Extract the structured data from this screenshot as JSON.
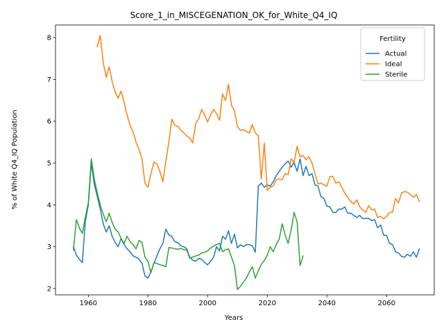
{
  "chart_data": {
    "type": "line",
    "title": "Score_1_in_MISCEGENATION_OK_for_White_Q4_IQ",
    "xlabel": "Years",
    "ylabel": "% of White Q4_IQ Population",
    "xlim": [
      1949,
      2076
    ],
    "ylim": [
      1.85,
      8.3
    ],
    "x_ticks": [
      1960,
      1980,
      2000,
      2020,
      2040,
      2060
    ],
    "y_ticks": [
      2,
      3,
      4,
      5,
      6,
      7,
      8
    ],
    "grid": false,
    "legend": {
      "title": "Fertility",
      "placement": "top-right"
    },
    "series": [
      {
        "name": "Actual",
        "color": "#1f77b4",
        "points": [
          [
            1955,
            3.0
          ],
          [
            1956,
            2.8
          ],
          [
            1957,
            2.7
          ],
          [
            1958,
            2.62
          ],
          [
            1959,
            3.6
          ],
          [
            1960,
            4.0
          ],
          [
            1961,
            5.0
          ],
          [
            1962,
            4.5
          ],
          [
            1963,
            4.2
          ],
          [
            1964,
            3.9
          ],
          [
            1965,
            3.55
          ],
          [
            1966,
            3.35
          ],
          [
            1967,
            3.5
          ],
          [
            1968,
            3.25
          ],
          [
            1969,
            3.1
          ],
          [
            1970,
            3.0
          ],
          [
            1971,
            3.2
          ],
          [
            1972,
            3.05
          ],
          [
            1973,
            2.95
          ],
          [
            1974,
            2.88
          ],
          [
            1975,
            2.78
          ],
          [
            1976,
            2.75
          ],
          [
            1977,
            2.7
          ],
          [
            1978,
            2.6
          ],
          [
            1979,
            2.3
          ],
          [
            1980,
            2.25
          ],
          [
            1981,
            2.4
          ],
          [
            1982,
            2.6
          ],
          [
            1983,
            2.78
          ],
          [
            1984,
            2.95
          ],
          [
            1985,
            3.08
          ],
          [
            1986,
            3.42
          ],
          [
            1987,
            3.28
          ],
          [
            1988,
            3.25
          ],
          [
            1989,
            3.12
          ],
          [
            1990,
            3.1
          ],
          [
            1991,
            3.02
          ],
          [
            1992,
            3.0
          ],
          [
            1993,
            2.95
          ],
          [
            1994,
            2.75
          ],
          [
            1995,
            2.68
          ],
          [
            1996,
            2.65
          ],
          [
            1997,
            2.72
          ],
          [
            1998,
            2.7
          ],
          [
            1999,
            2.62
          ],
          [
            2000,
            2.57
          ],
          [
            2001,
            2.65
          ],
          [
            2002,
            2.75
          ],
          [
            2003,
            3.0
          ],
          [
            2004,
            2.9
          ],
          [
            2005,
            3.25
          ],
          [
            2006,
            3.18
          ],
          [
            2007,
            3.38
          ],
          [
            2008,
            3.08
          ],
          [
            2009,
            3.3
          ],
          [
            2010,
            2.97
          ],
          [
            2011,
            3.05
          ],
          [
            2012,
            3.0
          ],
          [
            2013,
            3.05
          ],
          [
            2014,
            3.05
          ],
          [
            2015,
            3.02
          ],
          [
            2016,
            2.87
          ],
          [
            2017,
            4.45
          ],
          [
            2018,
            4.52
          ],
          [
            2019,
            4.42
          ],
          [
            2020,
            4.48
          ],
          [
            2021,
            4.45
          ],
          [
            2022,
            4.55
          ],
          [
            2023,
            4.7
          ],
          [
            2024,
            4.8
          ],
          [
            2025,
            4.9
          ],
          [
            2026,
            4.98
          ],
          [
            2027,
            5.05
          ],
          [
            2028,
            4.9
          ],
          [
            2029,
            5.02
          ],
          [
            2030,
            4.8
          ],
          [
            2031,
            5.1
          ],
          [
            2032,
            4.7
          ],
          [
            2033,
            4.92
          ],
          [
            2034,
            4.7
          ],
          [
            2035,
            4.75
          ],
          [
            2036,
            4.48
          ],
          [
            2037,
            4.45
          ],
          [
            2038,
            4.2
          ],
          [
            2039,
            4.15
          ],
          [
            2040,
            3.97
          ],
          [
            2041,
            3.95
          ],
          [
            2042,
            3.82
          ],
          [
            2043,
            3.82
          ],
          [
            2044,
            3.9
          ],
          [
            2045,
            3.9
          ],
          [
            2046,
            3.95
          ],
          [
            2047,
            3.8
          ],
          [
            2048,
            3.8
          ],
          [
            2049,
            3.75
          ],
          [
            2050,
            3.7
          ],
          [
            2051,
            3.75
          ],
          [
            2052,
            3.67
          ],
          [
            2053,
            3.68
          ],
          [
            2054,
            3.68
          ],
          [
            2055,
            3.62
          ],
          [
            2056,
            3.65
          ],
          [
            2057,
            3.45
          ],
          [
            2058,
            3.52
          ],
          [
            2059,
            3.28
          ],
          [
            2060,
            3.27
          ],
          [
            2061,
            3.08
          ],
          [
            2062,
            3.05
          ],
          [
            2063,
            2.88
          ],
          [
            2064,
            2.85
          ],
          [
            2065,
            2.77
          ],
          [
            2066,
            2.75
          ],
          [
            2067,
            2.82
          ],
          [
            2068,
            2.77
          ],
          [
            2069,
            2.88
          ],
          [
            2070,
            2.75
          ],
          [
            2071,
            2.95
          ]
        ]
      },
      {
        "name": "Ideal",
        "color": "#ff7f0e",
        "points": [
          [
            1963,
            7.78
          ],
          [
            1964,
            8.05
          ],
          [
            1965,
            7.4
          ],
          [
            1966,
            7.05
          ],
          [
            1967,
            7.3
          ],
          [
            1968,
            6.95
          ],
          [
            1969,
            6.7
          ],
          [
            1970,
            6.55
          ],
          [
            1971,
            6.72
          ],
          [
            1972,
            6.45
          ],
          [
            1973,
            6.15
          ],
          [
            1974,
            5.9
          ],
          [
            1975,
            5.75
          ],
          [
            1976,
            5.5
          ],
          [
            1977,
            5.32
          ],
          [
            1978,
            5.1
          ],
          [
            1979,
            4.52
          ],
          [
            1980,
            4.42
          ],
          [
            1981,
            4.75
          ],
          [
            1982,
            5.02
          ],
          [
            1983,
            4.98
          ],
          [
            1984,
            4.8
          ],
          [
            1985,
            4.55
          ],
          [
            1986,
            5.05
          ],
          [
            1987,
            5.5
          ],
          [
            1988,
            6.05
          ],
          [
            1989,
            5.9
          ],
          [
            1990,
            5.88
          ],
          [
            1991,
            5.78
          ],
          [
            1992,
            5.72
          ],
          [
            1993,
            5.65
          ],
          [
            1994,
            5.6
          ],
          [
            1995,
            5.48
          ],
          [
            1996,
            5.95
          ],
          [
            1997,
            6.05
          ],
          [
            1998,
            6.28
          ],
          [
            1999,
            6.15
          ],
          [
            2000,
            5.98
          ],
          [
            2001,
            6.15
          ],
          [
            2002,
            6.28
          ],
          [
            2003,
            6.18
          ],
          [
            2004,
            6.02
          ],
          [
            2005,
            6.65
          ],
          [
            2006,
            6.5
          ],
          [
            2007,
            6.88
          ],
          [
            2008,
            6.38
          ],
          [
            2009,
            6.25
          ],
          [
            2010,
            5.88
          ],
          [
            2011,
            5.78
          ],
          [
            2012,
            5.8
          ],
          [
            2013,
            5.75
          ],
          [
            2014,
            5.72
          ],
          [
            2015,
            5.92
          ],
          [
            2016,
            5.72
          ],
          [
            2017,
            5.65
          ],
          [
            2018,
            4.62
          ],
          [
            2019,
            5.48
          ],
          [
            2020,
            4.35
          ],
          [
            2021,
            4.42
          ],
          [
            2022,
            4.45
          ],
          [
            2023,
            4.6
          ],
          [
            2024,
            4.62
          ],
          [
            2025,
            4.6
          ],
          [
            2026,
            4.75
          ],
          [
            2027,
            4.72
          ],
          [
            2028,
            5.1
          ],
          [
            2029,
            5.02
          ],
          [
            2030,
            5.4
          ],
          [
            2031,
            5.15
          ],
          [
            2032,
            5.18
          ],
          [
            2033,
            5.08
          ],
          [
            2034,
            5.15
          ],
          [
            2035,
            5.0
          ],
          [
            2036,
            4.75
          ],
          [
            2037,
            4.5
          ],
          [
            2038,
            4.52
          ],
          [
            2039,
            4.48
          ],
          [
            2040,
            4.45
          ],
          [
            2041,
            4.68
          ],
          [
            2042,
            4.68
          ],
          [
            2043,
            4.52
          ],
          [
            2044,
            4.55
          ],
          [
            2045,
            4.42
          ],
          [
            2046,
            4.28
          ],
          [
            2047,
            4.18
          ],
          [
            2048,
            4.08
          ],
          [
            2049,
            4.02
          ],
          [
            2050,
            4.12
          ],
          [
            2051,
            3.95
          ],
          [
            2052,
            3.88
          ],
          [
            2053,
            3.82
          ],
          [
            2054,
            3.98
          ],
          [
            2055,
            3.88
          ],
          [
            2056,
            3.9
          ],
          [
            2057,
            3.7
          ],
          [
            2058,
            3.72
          ],
          [
            2059,
            3.67
          ],
          [
            2060,
            3.72
          ],
          [
            2061,
            3.82
          ],
          [
            2062,
            3.83
          ],
          [
            2063,
            4.15
          ],
          [
            2064,
            4.05
          ],
          [
            2065,
            4.28
          ],
          [
            2066,
            4.32
          ],
          [
            2067,
            4.3
          ],
          [
            2068,
            4.25
          ],
          [
            2069,
            4.18
          ],
          [
            2070,
            4.25
          ],
          [
            2071,
            4.08
          ]
        ]
      },
      {
        "name": "Sterile",
        "color": "#2ca02c",
        "points": [
          [
            1955,
            2.92
          ],
          [
            1956,
            3.65
          ],
          [
            1957,
            3.45
          ],
          [
            1958,
            3.32
          ],
          [
            1959,
            3.7
          ],
          [
            1960,
            4.05
          ],
          [
            1961,
            5.1
          ],
          [
            1962,
            4.62
          ],
          [
            1963,
            4.28
          ],
          [
            1964,
            4.0
          ],
          [
            1965,
            3.78
          ],
          [
            1966,
            3.6
          ],
          [
            1967,
            3.8
          ],
          [
            1968,
            3.58
          ],
          [
            1969,
            3.42
          ],
          [
            1970,
            3.35
          ],
          [
            1971,
            3.2
          ],
          [
            1972,
            3.08
          ],
          [
            1973,
            3.25
          ],
          [
            1974,
            3.12
          ],
          [
            1975,
            3.05
          ],
          [
            1976,
            2.95
          ],
          [
            1977,
            3.15
          ],
          [
            1978,
            3.1
          ],
          [
            1979,
            2.75
          ],
          [
            1980,
            2.65
          ],
          [
            1981,
            2.38
          ],
          [
            1982,
            2.62
          ],
          [
            1983,
            2.6
          ],
          [
            1984,
            2.57
          ],
          [
            1985,
            2.55
          ],
          [
            1986,
            2.52
          ],
          [
            1987,
            2.98
          ],
          [
            1988,
            2.97
          ],
          [
            1989,
            2.95
          ],
          [
            1990,
            2.94
          ],
          [
            1991,
            2.96
          ],
          [
            1992,
            2.93
          ],
          [
            1993,
            2.92
          ],
          [
            1994,
            2.73
          ],
          [
            1995,
            2.75
          ],
          [
            1996,
            2.78
          ],
          [
            1997,
            2.8
          ],
          [
            1998,
            2.85
          ],
          [
            1999,
            2.87
          ],
          [
            2000,
            2.9
          ],
          [
            2001,
            2.97
          ],
          [
            2002,
            3.02
          ],
          [
            2003,
            3.05
          ],
          [
            2004,
            3.08
          ],
          [
            2005,
            2.88
          ],
          [
            2006,
            2.93
          ],
          [
            2007,
            2.95
          ],
          [
            2008,
            2.75
          ],
          [
            2009,
            2.55
          ],
          [
            2010,
            1.98
          ],
          [
            2011,
            2.05
          ],
          [
            2012,
            2.15
          ],
          [
            2013,
            2.25
          ],
          [
            2014,
            2.4
          ],
          [
            2015,
            2.52
          ],
          [
            2016,
            2.25
          ],
          [
            2017,
            2.42
          ],
          [
            2018,
            2.58
          ],
          [
            2019,
            2.67
          ],
          [
            2020,
            2.8
          ],
          [
            2021,
            3.0
          ],
          [
            2022,
            2.88
          ],
          [
            2023,
            3.05
          ],
          [
            2024,
            3.18
          ],
          [
            2025,
            3.55
          ],
          [
            2026,
            3.28
          ],
          [
            2027,
            3.08
          ],
          [
            2028,
            3.4
          ],
          [
            2029,
            3.82
          ],
          [
            2030,
            3.6
          ],
          [
            2031,
            2.55
          ],
          [
            2032,
            2.78
          ]
        ]
      }
    ]
  }
}
